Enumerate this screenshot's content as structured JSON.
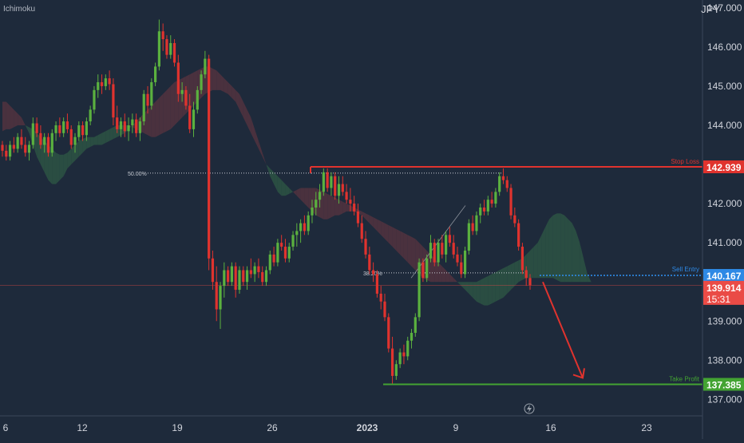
{
  "indicator_label": "Ichimoku",
  "colors": {
    "background": "#1e2a3b",
    "up": "#5bb13f",
    "down": "#e0332e",
    "stop_loss": "#e0332e",
    "take_profit": "#43a332",
    "entry": "#2e89e5",
    "current": "#ea4b46",
    "cloud_bull": "#2f5a46",
    "cloud_bear": "#5a3440",
    "axis_text": "#d1d4dc"
  },
  "chart_data": {
    "type": "candlestick",
    "currency": "JPY",
    "ylim": [
      136.6,
      147.2
    ],
    "y_ticks": [
      {
        "value": 147.0,
        "label": "147.000"
      },
      {
        "value": 146.0,
        "label": "146.000"
      },
      {
        "value": 145.0,
        "label": "145.000"
      },
      {
        "value": 144.0,
        "label": "144.000"
      },
      {
        "value": 142.0,
        "label": "142.000"
      },
      {
        "value": 141.0,
        "label": "141.000"
      },
      {
        "value": 139.0,
        "label": "139.000"
      },
      {
        "value": 138.0,
        "label": "138.000"
      },
      {
        "value": 137.0,
        "label": "137.000"
      }
    ],
    "x_ticks": [
      "6",
      "12",
      "19",
      "26",
      "2023",
      "9",
      "16",
      "23"
    ],
    "levels": [
      {
        "name": "stop-loss",
        "label": "Stop Loss",
        "value": 142.939,
        "value_label": "142.939",
        "color": "#e0332e"
      },
      {
        "name": "sell-entry",
        "label": "Sell Entry",
        "value": 140.167,
        "value_label": "140.167",
        "color": "#2e89e5"
      },
      {
        "name": "take-profit",
        "label": "Take Profit",
        "value": 137.385,
        "value_label": "137.385",
        "color": "#43a332"
      }
    ],
    "current_price": {
      "value": 139.914,
      "value_label": "139.914",
      "countdown": "15:31"
    },
    "fib_levels": [
      {
        "label": "50.00%",
        "value": 142.78
      },
      {
        "label": "38.20%",
        "value": 140.23
      }
    ],
    "candles": [
      [
        143.5,
        143.6,
        143.2,
        143.35
      ],
      [
        143.35,
        143.5,
        143.1,
        143.2
      ],
      [
        143.2,
        143.6,
        143.1,
        143.5
      ],
      [
        143.5,
        143.7,
        143.3,
        143.4
      ],
      [
        143.4,
        143.8,
        143.3,
        143.7
      ],
      [
        143.7,
        143.9,
        143.4,
        143.5
      ],
      [
        143.5,
        143.7,
        143.2,
        143.3
      ],
      [
        143.3,
        143.6,
        143.1,
        143.5
      ],
      [
        143.5,
        144.2,
        143.4,
        144.05
      ],
      [
        144.05,
        144.2,
        143.7,
        143.8
      ],
      [
        143.8,
        144.0,
        143.4,
        143.5
      ],
      [
        143.5,
        143.8,
        143.3,
        143.7
      ],
      [
        143.7,
        143.8,
        143.2,
        143.3
      ],
      [
        143.3,
        143.9,
        143.2,
        143.8
      ],
      [
        143.8,
        144.1,
        143.6,
        144.0
      ],
      [
        144.0,
        144.2,
        143.7,
        143.8
      ],
      [
        143.8,
        144.2,
        143.7,
        144.1
      ],
      [
        144.1,
        144.3,
        143.8,
        143.9
      ],
      [
        143.9,
        144.0,
        143.4,
        143.5
      ],
      [
        143.5,
        143.8,
        143.3,
        143.7
      ],
      [
        143.7,
        144.1,
        143.6,
        144.0
      ],
      [
        144.0,
        144.1,
        143.6,
        143.75
      ],
      [
        143.75,
        144.2,
        143.6,
        144.1
      ],
      [
        144.1,
        144.5,
        144.0,
        144.4
      ],
      [
        144.4,
        145.0,
        144.3,
        144.9
      ],
      [
        144.9,
        145.3,
        144.7,
        145.1
      ],
      [
        145.1,
        145.3,
        144.8,
        145.0
      ],
      [
        145.0,
        145.3,
        144.9,
        145.2
      ],
      [
        145.2,
        145.4,
        144.9,
        145.05
      ],
      [
        145.05,
        145.2,
        144.0,
        144.2
      ],
      [
        144.2,
        144.5,
        143.8,
        143.9
      ],
      [
        143.9,
        144.2,
        143.7,
        144.1
      ],
      [
        144.1,
        144.3,
        143.7,
        143.85
      ],
      [
        143.85,
        144.2,
        143.6,
        144.0
      ],
      [
        144.0,
        144.3,
        143.8,
        144.15
      ],
      [
        144.15,
        144.3,
        143.7,
        143.8
      ],
      [
        143.8,
        144.2,
        143.6,
        144.1
      ],
      [
        144.1,
        144.9,
        144.0,
        144.8
      ],
      [
        144.8,
        145.0,
        144.3,
        144.5
      ],
      [
        144.5,
        145.2,
        144.4,
        145.1
      ],
      [
        145.1,
        145.6,
        145.0,
        145.5
      ],
      [
        145.5,
        146.7,
        145.4,
        146.4
      ],
      [
        146.4,
        146.6,
        145.9,
        146.2
      ],
      [
        146.2,
        146.3,
        145.7,
        145.8
      ],
      [
        145.8,
        146.3,
        145.7,
        146.1
      ],
      [
        146.1,
        146.2,
        145.5,
        145.6
      ],
      [
        145.6,
        145.8,
        144.6,
        144.8
      ],
      [
        144.8,
        145.1,
        144.6,
        144.9
      ],
      [
        144.9,
        145.0,
        144.4,
        144.5
      ],
      [
        144.5,
        144.8,
        143.8,
        143.9
      ],
      [
        143.9,
        144.6,
        143.7,
        144.4
      ],
      [
        144.4,
        145.0,
        144.3,
        144.9
      ],
      [
        144.9,
        145.4,
        144.8,
        145.3
      ],
      [
        145.3,
        145.9,
        145.2,
        145.7
      ],
      [
        145.7,
        145.8,
        140.3,
        140.6
      ],
      [
        140.6,
        140.8,
        139.8,
        140.0
      ],
      [
        140.0,
        140.4,
        139.0,
        139.3
      ],
      [
        139.3,
        140.0,
        138.8,
        139.9
      ],
      [
        139.9,
        140.5,
        139.6,
        140.3
      ],
      [
        140.3,
        140.4,
        139.9,
        140.0
      ],
      [
        140.0,
        140.5,
        139.9,
        140.4
      ],
      [
        140.4,
        140.5,
        139.6,
        139.8
      ],
      [
        139.8,
        140.4,
        139.7,
        140.3
      ],
      [
        140.3,
        140.4,
        139.9,
        140.0
      ],
      [
        140.0,
        140.4,
        139.8,
        140.3
      ],
      [
        140.3,
        140.6,
        140.1,
        140.2
      ],
      [
        140.2,
        140.5,
        140.0,
        140.4
      ],
      [
        140.4,
        140.6,
        140.1,
        140.25
      ],
      [
        140.25,
        140.4,
        139.9,
        140.0
      ],
      [
        140.0,
        140.4,
        139.9,
        140.3
      ],
      [
        140.3,
        140.8,
        140.2,
        140.7
      ],
      [
        140.7,
        140.9,
        140.4,
        140.5
      ],
      [
        140.5,
        141.1,
        140.4,
        141.0
      ],
      [
        141.0,
        141.2,
        140.8,
        140.9
      ],
      [
        140.9,
        141.1,
        140.5,
        140.6
      ],
      [
        140.6,
        141.0,
        140.5,
        140.9
      ],
      [
        140.9,
        141.3,
        140.8,
        141.2
      ],
      [
        141.2,
        141.5,
        140.9,
        141.3
      ],
      [
        141.3,
        141.6,
        141.0,
        141.5
      ],
      [
        141.5,
        141.7,
        141.2,
        141.3
      ],
      [
        141.3,
        141.8,
        141.2,
        141.7
      ],
      [
        141.7,
        142.1,
        141.5,
        141.9
      ],
      [
        141.9,
        142.3,
        141.7,
        142.1
      ],
      [
        142.1,
        142.5,
        141.9,
        142.3
      ],
      [
        142.3,
        142.9,
        142.2,
        142.8
      ],
      [
        142.8,
        142.9,
        142.3,
        142.4
      ],
      [
        142.4,
        142.8,
        142.2,
        142.7
      ],
      [
        142.7,
        142.8,
        142.1,
        142.2
      ],
      [
        142.2,
        142.7,
        142.0,
        142.5
      ],
      [
        142.5,
        142.7,
        142.2,
        142.3
      ],
      [
        142.3,
        142.5,
        142.0,
        142.1
      ],
      [
        142.1,
        142.4,
        141.8,
        142.0
      ],
      [
        142.0,
        142.2,
        141.7,
        141.8
      ],
      [
        141.8,
        142.0,
        141.4,
        141.5
      ],
      [
        141.5,
        141.7,
        141.0,
        141.1
      ],
      [
        141.1,
        141.3,
        140.6,
        140.7
      ],
      [
        140.7,
        140.9,
        140.2,
        140.3
      ],
      [
        140.3,
        140.5,
        140.0,
        140.2
      ],
      [
        140.2,
        140.3,
        139.6,
        139.7
      ],
      [
        139.7,
        139.9,
        139.3,
        139.5
      ],
      [
        139.5,
        139.7,
        139.0,
        139.1
      ],
      [
        139.1,
        139.2,
        138.2,
        138.3
      ],
      [
        138.3,
        138.6,
        137.4,
        137.6
      ],
      [
        137.6,
        138.0,
        137.5,
        137.9
      ],
      [
        137.9,
        138.3,
        137.8,
        138.2
      ],
      [
        138.2,
        138.4,
        137.9,
        138.1
      ],
      [
        138.1,
        138.6,
        138.0,
        138.5
      ],
      [
        138.5,
        138.8,
        138.3,
        138.7
      ],
      [
        138.7,
        139.2,
        138.6,
        139.1
      ],
      [
        139.1,
        140.6,
        139.0,
        140.5
      ],
      [
        140.5,
        140.6,
        140.0,
        140.1
      ],
      [
        140.1,
        140.7,
        140.0,
        140.6
      ],
      [
        140.6,
        141.2,
        140.5,
        141.0
      ],
      [
        141.0,
        141.1,
        140.4,
        140.5
      ],
      [
        140.5,
        141.1,
        140.4,
        141.0
      ],
      [
        141.0,
        141.2,
        140.6,
        140.7
      ],
      [
        140.7,
        141.3,
        140.5,
        141.2
      ],
      [
        141.2,
        141.4,
        140.9,
        141.0
      ],
      [
        141.0,
        141.2,
        140.6,
        140.7
      ],
      [
        140.7,
        140.9,
        140.4,
        140.5
      ],
      [
        140.5,
        140.7,
        140.1,
        140.2
      ],
      [
        140.2,
        140.9,
        140.1,
        140.8
      ],
      [
        140.8,
        141.6,
        140.7,
        141.5
      ],
      [
        141.5,
        141.7,
        141.2,
        141.3
      ],
      [
        141.3,
        141.8,
        141.2,
        141.7
      ],
      [
        141.7,
        142.0,
        141.5,
        141.9
      ],
      [
        141.9,
        142.1,
        141.7,
        141.8
      ],
      [
        141.8,
        142.2,
        141.7,
        142.1
      ],
      [
        142.1,
        142.3,
        141.9,
        142.0
      ],
      [
        142.0,
        142.4,
        141.9,
        142.3
      ],
      [
        142.3,
        142.8,
        142.2,
        142.7
      ],
      [
        142.7,
        142.9,
        142.5,
        142.6
      ],
      [
        142.6,
        142.7,
        142.3,
        142.4
      ],
      [
        142.4,
        142.5,
        141.6,
        141.7
      ],
      [
        141.7,
        141.9,
        141.4,
        141.5
      ],
      [
        141.5,
        141.6,
        140.8,
        140.9
      ],
      [
        140.9,
        141.0,
        140.2,
        140.3
      ],
      [
        140.3,
        140.4,
        139.9,
        140.1
      ],
      [
        140.1,
        140.2,
        139.8,
        139.914
      ]
    ],
    "cloud": {
      "start_index": 0,
      "senkou_a": [
        143.85,
        143.9,
        143.9,
        143.95,
        144.0,
        144.0,
        144.0,
        143.95,
        143.9,
        143.8,
        143.7,
        143.6,
        143.5,
        143.4,
        143.3,
        143.25,
        143.25,
        143.3,
        143.4,
        143.5,
        143.6,
        143.65,
        143.7,
        143.7,
        143.7,
        143.75,
        143.8,
        143.85,
        143.9,
        143.95,
        144.0,
        144.0,
        144.0,
        144.0,
        143.95,
        143.9,
        143.85,
        143.8,
        143.75,
        143.7,
        143.7,
        143.75,
        143.8,
        143.85,
        143.9,
        144.0,
        144.1,
        144.2,
        144.3,
        144.4,
        144.5,
        144.6,
        144.7,
        144.8,
        144.85,
        144.9,
        144.9,
        144.9,
        144.85,
        144.8,
        144.7,
        144.6,
        144.4,
        144.2,
        144.0,
        143.8,
        143.6,
        143.4,
        143.2,
        143.0,
        142.9,
        142.8,
        142.7,
        142.6,
        142.5,
        142.4,
        142.3,
        142.2,
        142.1,
        142.0,
        141.9,
        141.8,
        141.7,
        141.65,
        141.6,
        141.6,
        141.65,
        141.7,
        141.7,
        141.75,
        141.8,
        141.8,
        141.8,
        141.75,
        141.7,
        141.6,
        141.5,
        141.4,
        141.3,
        141.2,
        141.1,
        141.0,
        140.9,
        140.8,
        140.7,
        140.6,
        140.5,
        140.4,
        140.3,
        140.2,
        140.1,
        140.05,
        140.0,
        140.0,
        140.0,
        140.0,
        140.0,
        140.0,
        140.0,
        140.0,
        140.0,
        140.0,
        140.0,
        140.0,
        140.0,
        140.05,
        140.1,
        140.15,
        140.2,
        140.25,
        140.3,
        140.35,
        140.4,
        140.45,
        140.5,
        140.55,
        140.6,
        140.7,
        140.8,
        140.9,
        141.0,
        141.2,
        141.4,
        141.6,
        141.7,
        141.75,
        141.75,
        141.7,
        141.6,
        141.5,
        141.3,
        141.0,
        140.6,
        140.2,
        140.0
      ],
      "senkou_b": [
        144.6,
        144.6,
        144.5,
        144.4,
        144.3,
        144.2,
        144.0,
        143.8,
        143.5,
        143.2,
        143.0,
        142.8,
        142.6,
        142.5,
        142.5,
        142.6,
        142.7,
        142.9,
        143.0,
        143.1,
        143.2,
        143.3,
        143.4,
        143.45,
        143.5,
        143.5,
        143.5,
        143.55,
        143.6,
        143.65,
        143.7,
        143.75,
        143.8,
        143.9,
        144.0,
        144.1,
        144.2,
        144.3,
        144.4,
        144.5,
        144.6,
        144.7,
        144.8,
        144.9,
        145.0,
        145.1,
        145.15,
        145.2,
        145.25,
        145.3,
        145.35,
        145.4,
        145.45,
        145.5,
        145.5,
        145.45,
        145.4,
        145.3,
        145.2,
        145.1,
        145.0,
        144.9,
        144.8,
        144.6,
        144.4,
        144.2,
        143.9,
        143.6,
        143.3,
        143.0,
        142.7,
        142.5,
        142.3,
        142.2,
        142.2,
        142.25,
        142.3,
        142.35,
        142.4,
        142.4,
        142.4,
        142.4,
        142.4,
        142.35,
        142.3,
        142.25,
        142.2,
        142.15,
        142.1,
        142.05,
        142.0,
        141.95,
        141.9,
        141.85,
        141.8,
        141.75,
        141.7,
        141.65,
        141.6,
        141.55,
        141.5,
        141.45,
        141.4,
        141.35,
        141.3,
        141.25,
        141.2,
        141.15,
        141.1,
        141.0,
        140.9,
        140.8,
        140.7,
        140.6,
        140.5,
        140.4,
        140.3,
        140.2,
        140.1,
        140.0,
        139.9,
        139.8,
        139.7,
        139.6,
        139.5,
        139.45,
        139.4,
        139.4,
        139.45,
        139.5,
        139.55,
        139.6,
        139.7,
        139.8,
        139.9,
        140.0,
        140.05,
        140.1,
        140.1,
        140.1,
        140.1,
        140.1,
        140.1,
        140.1,
        140.1,
        140.05,
        140.0,
        140.0,
        140.0,
        140.0,
        140.0,
        140.0,
        140.0,
        140.0,
        140.0
      ]
    }
  }
}
